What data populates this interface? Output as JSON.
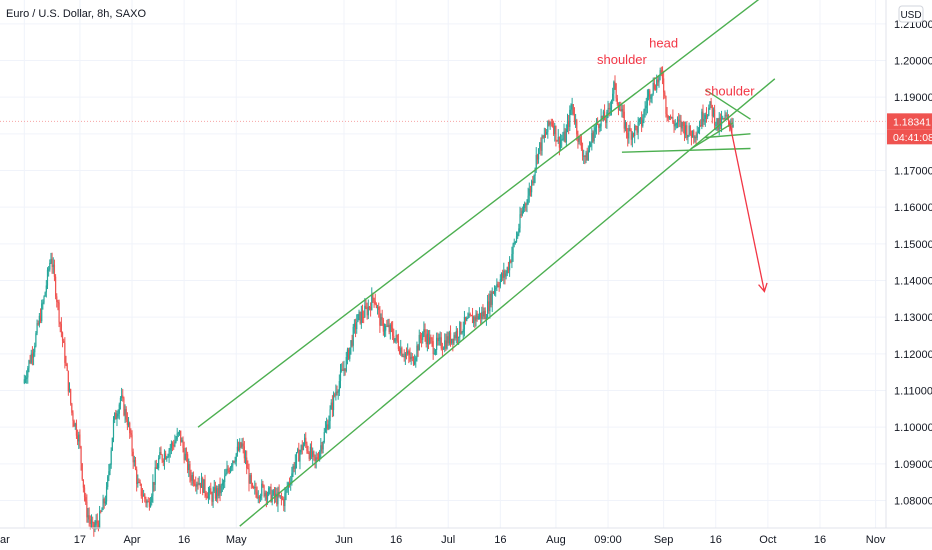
{
  "chart_data": {
    "type": "candlestick",
    "title": "Euro / U.S. Dollar, 8h, SAXO",
    "currency_button": "USD",
    "last_price_label": "1.18341",
    "countdown_label": "04:41:08",
    "last_price": 1.18341,
    "ylim": [
      1.0725,
      1.2165
    ],
    "y_ticks": [
      1.08,
      1.09,
      1.1,
      1.11,
      1.12,
      1.13,
      1.14,
      1.15,
      1.16,
      1.17,
      1.18,
      1.19,
      1.2,
      1.21
    ],
    "y_tick_labels": [
      "1.08000",
      "1.09000",
      "1.10000",
      "1.11000",
      "1.12000",
      "1.13000",
      "1.14000",
      "1.15000",
      "1.16000",
      "1.17000",
      "1.18000",
      "1.19000",
      "1.20000",
      "1.21000"
    ],
    "x_dates": [
      "2020-03-01",
      "2020-03-17",
      "2020-04-01",
      "2020-04-16",
      "2020-05-01",
      "2020-06-01",
      "2020-06-16",
      "2020-07-01",
      "2020-07-16",
      "2020-08-01",
      "2020-08-16",
      "2020-09-01",
      "2020-09-16",
      "2020-10-01",
      "2020-10-16",
      "2020-11-01"
    ],
    "x_tick_labels": [
      "ar",
      "17",
      "Apr",
      "16",
      "May",
      "Jun",
      "16",
      "Jul",
      "16",
      "Aug",
      "09:00",
      "Sep",
      "16",
      "Oct",
      "16",
      "Nov"
    ],
    "price_path": [
      [
        "2020-03-01",
        1.112
      ],
      [
        "2020-03-04",
        1.122
      ],
      [
        "2020-03-07",
        1.135
      ],
      [
        "2020-03-09",
        1.147
      ],
      [
        "2020-03-11",
        1.133
      ],
      [
        "2020-03-13",
        1.119
      ],
      [
        "2020-03-15",
        1.104
      ],
      [
        "2020-03-17",
        1.097
      ],
      [
        "2020-03-19",
        1.078
      ],
      [
        "2020-03-21",
        1.072
      ],
      [
        "2020-03-23",
        1.075
      ],
      [
        "2020-03-25",
        1.082
      ],
      [
        "2020-03-27",
        1.101
      ],
      [
        "2020-03-29",
        1.108
      ],
      [
        "2020-03-31",
        1.102
      ],
      [
        "2020-04-03",
        1.084
      ],
      [
        "2020-04-06",
        1.079
      ],
      [
        "2020-04-09",
        1.091
      ],
      [
        "2020-04-12",
        1.094
      ],
      [
        "2020-04-15",
        1.098
      ],
      [
        "2020-04-18",
        1.087
      ],
      [
        "2020-04-21",
        1.085
      ],
      [
        "2020-04-24",
        1.081
      ],
      [
        "2020-04-27",
        1.083
      ],
      [
        "2020-04-30",
        1.091
      ],
      [
        "2020-05-03",
        1.095
      ],
      [
        "2020-05-06",
        1.082
      ],
      [
        "2020-05-09",
        1.083
      ],
      [
        "2020-05-12",
        1.081
      ],
      [
        "2020-05-15",
        1.08
      ],
      [
        "2020-05-18",
        1.09
      ],
      [
        "2020-05-21",
        1.096
      ],
      [
        "2020-05-24",
        1.09
      ],
      [
        "2020-05-27",
        1.099
      ],
      [
        "2020-05-30",
        1.11
      ],
      [
        "2020-06-02",
        1.118
      ],
      [
        "2020-06-05",
        1.129
      ],
      [
        "2020-06-08",
        1.132
      ],
      [
        "2020-06-10",
        1.136
      ],
      [
        "2020-06-12",
        1.128
      ],
      [
        "2020-06-15",
        1.126
      ],
      [
        "2020-06-18",
        1.121
      ],
      [
        "2020-06-21",
        1.118
      ],
      [
        "2020-06-24",
        1.126
      ],
      [
        "2020-06-27",
        1.122
      ],
      [
        "2020-06-30",
        1.123
      ],
      [
        "2020-07-03",
        1.125
      ],
      [
        "2020-07-06",
        1.128
      ],
      [
        "2020-07-09",
        1.13
      ],
      [
        "2020-07-12",
        1.131
      ],
      [
        "2020-07-15",
        1.139
      ],
      [
        "2020-07-18",
        1.142
      ],
      [
        "2020-07-21",
        1.152
      ],
      [
        "2020-07-23",
        1.16
      ],
      [
        "2020-07-25",
        1.165
      ],
      [
        "2020-07-27",
        1.175
      ],
      [
        "2020-07-29",
        1.179
      ],
      [
        "2020-07-31",
        1.184
      ],
      [
        "2020-08-02",
        1.178
      ],
      [
        "2020-08-04",
        1.179
      ],
      [
        "2020-08-06",
        1.188
      ],
      [
        "2020-08-08",
        1.178
      ],
      [
        "2020-08-10",
        1.173
      ],
      [
        "2020-08-12",
        1.18
      ],
      [
        "2020-08-14",
        1.184
      ],
      [
        "2020-08-16",
        1.184
      ],
      [
        "2020-08-18",
        1.193
      ],
      [
        "2020-08-20",
        1.186
      ],
      [
        "2020-08-22",
        1.18
      ],
      [
        "2020-08-24",
        1.181
      ],
      [
        "2020-08-26",
        1.183
      ],
      [
        "2020-08-28",
        1.191
      ],
      [
        "2020-08-30",
        1.194
      ],
      [
        "2020-09-01",
        1.196
      ],
      [
        "2020-09-02",
        1.187
      ],
      [
        "2020-09-04",
        1.183
      ],
      [
        "2020-09-07",
        1.182
      ],
      [
        "2020-09-09",
        1.18
      ],
      [
        "2020-09-11",
        1.181
      ],
      [
        "2020-09-13",
        1.186
      ],
      [
        "2020-09-15",
        1.187
      ],
      [
        "2020-09-17",
        1.182
      ],
      [
        "2020-09-19",
        1.184
      ],
      [
        "2020-09-21",
        1.183
      ]
    ],
    "channel": {
      "upper": [
        [
          "2020-04-20",
          1.1
        ],
        [
          "2020-10-03",
          1.22
        ]
      ],
      "lower": [
        [
          "2020-05-02",
          1.073
        ],
        [
          "2020-10-03",
          1.195
        ]
      ]
    },
    "neckline": [
      [
        "2020-08-20",
        1.175
      ],
      [
        "2020-09-26",
        1.176
      ]
    ],
    "triangle": {
      "upper": [
        [
          "2020-09-13",
          1.192
        ],
        [
          "2020-09-26",
          1.184
        ]
      ],
      "lower": [
        [
          "2020-09-13",
          1.179
        ],
        [
          "2020-09-26",
          1.18
        ]
      ]
    },
    "inner_line": [
      [
        "2020-09-09",
        1.176
      ],
      [
        "2020-09-21",
        1.183
      ]
    ],
    "projection": [
      [
        "2020-09-20",
        1.183
      ],
      [
        "2020-09-30",
        1.137
      ]
    ],
    "annotations": [
      {
        "text": "shoulder",
        "x": "2020-08-20",
        "y": 1.199
      },
      {
        "text": "head",
        "x": "2020-09-01",
        "y": 1.2035
      },
      {
        "text": "shoulder",
        "x": "2020-09-20",
        "y": 1.1905
      }
    ],
    "colors": {
      "up": "#26a69a",
      "down": "#ef5350",
      "channel": "#4caf50",
      "annotation": "#f23645",
      "projection": "#f23645",
      "grid": "#f0f3fa",
      "price_line": "#f7a5a5"
    }
  }
}
